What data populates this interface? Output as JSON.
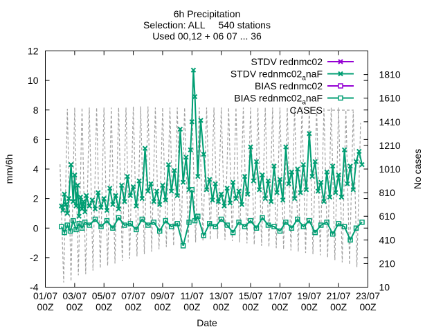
{
  "chart_data": {
    "type": "line",
    "title": [
      "6h Precipitation",
      "Selection: ALL     540 stations",
      "Used 00,12 + 06 07 ... 36"
    ],
    "xlabel": "Date",
    "ylabel": "mm/6h",
    "y2label": "No cases",
    "ylim": [
      -4,
      12
    ],
    "y2lim": [
      10,
      2010
    ],
    "yticks": [
      -4,
      -2,
      0,
      2,
      4,
      6,
      8,
      10,
      12
    ],
    "y2ticks": [
      10,
      210,
      410,
      610,
      810,
      1010,
      1210,
      1410,
      1610,
      1810
    ],
    "xlim_days": [
      0,
      22
    ],
    "xticks": [
      {
        "day": 0,
        "label1": "01/07",
        "label2": "00Z"
      },
      {
        "day": 2,
        "label1": "03/07",
        "label2": "00Z"
      },
      {
        "day": 4,
        "label1": "05/07",
        "label2": "00Z"
      },
      {
        "day": 6,
        "label1": "07/07",
        "label2": "00Z"
      },
      {
        "day": 8,
        "label1": "09/07",
        "label2": "00Z"
      },
      {
        "day": 10,
        "label1": "11/07",
        "label2": "00Z"
      },
      {
        "day": 12,
        "label1": "13/07",
        "label2": "00Z"
      },
      {
        "day": 14,
        "label1": "15/07",
        "label2": "00Z"
      },
      {
        "day": 16,
        "label1": "17/07",
        "label2": "00Z"
      },
      {
        "day": 18,
        "label1": "19/07",
        "label2": "00Z"
      },
      {
        "day": 20,
        "label1": "21/07",
        "label2": "00Z"
      },
      {
        "day": 22,
        "label1": "23/07",
        "label2": "00Z"
      }
    ],
    "legend_position": "top-right",
    "legend": [
      {
        "label": "STDV rednmc02",
        "color": "#9400d3",
        "style": "line-x"
      },
      {
        "label_pre": "STDV rednmc02",
        "label_sub": "a",
        "label_post": "naF",
        "color": "#009e73",
        "style": "line-x"
      },
      {
        "label": "BIAS rednmc02",
        "color": "#9400d3",
        "style": "line-square"
      },
      {
        "label_pre": "BIAS rednmc02",
        "label_sub": "a",
        "label_post": "naF",
        "color": "#009e73",
        "style": "line-square"
      },
      {
        "label": "CASES",
        "color": "#a0a0a0",
        "style": "dashed"
      }
    ],
    "series": [
      {
        "name": "STDV rednmc02anaF",
        "color": "#009e73",
        "marker": "x",
        "x": [
          1.1,
          1.2,
          1.3,
          1.4,
          1.5,
          1.6,
          1.75,
          1.9,
          2.0,
          2.1,
          2.2,
          2.3,
          2.4,
          2.5,
          2.6,
          2.7,
          2.8,
          3.0,
          3.2,
          3.4,
          3.6,
          3.8,
          4.0,
          4.2,
          4.4,
          4.6,
          4.8,
          5.0,
          5.2,
          5.4,
          5.6,
          5.8,
          6.0,
          6.2,
          6.4,
          6.6,
          6.8,
          7.0,
          7.2,
          7.4,
          7.6,
          7.8,
          8.0,
          8.2,
          8.4,
          8.6,
          8.8,
          9.0,
          9.2,
          9.4,
          9.6,
          9.8,
          9.9,
          10.0,
          10.1,
          10.2,
          10.4,
          10.6,
          10.8,
          11.0,
          11.2,
          11.4,
          11.6,
          11.8,
          12.0,
          12.2,
          12.4,
          12.6,
          12.8,
          13.0,
          13.2,
          13.4,
          13.6,
          13.8,
          14.0,
          14.2,
          14.4,
          14.6,
          14.8,
          15.0,
          15.2,
          15.4,
          15.6,
          15.8,
          16.0,
          16.2,
          16.4,
          16.6,
          16.8,
          17.0,
          17.2,
          17.4,
          17.6,
          17.8,
          18.0,
          18.2,
          18.4,
          18.6,
          18.8,
          19.0,
          19.2,
          19.4,
          19.6,
          19.8,
          20.0,
          20.2,
          20.4,
          20.6,
          20.8,
          21.0,
          21.2,
          21.4,
          21.6
        ],
        "y": [
          1.5,
          1.2,
          2.3,
          1.6,
          1.0,
          2.0,
          4.3,
          1.8,
          3.6,
          1.5,
          2.9,
          0.8,
          2.1,
          1.3,
          1.8,
          1.1,
          2.2,
          1.5,
          1.9,
          1.3,
          2.4,
          1.4,
          2.0,
          1.2,
          2.7,
          1.6,
          2.2,
          1.3,
          2.9,
          1.8,
          3.5,
          2.2,
          2.8,
          1.5,
          3.2,
          2.0,
          5.4,
          2.5,
          3.0,
          1.8,
          2.5,
          1.6,
          2.9,
          1.9,
          4.3,
          2.5,
          3.9,
          2.2,
          6.7,
          3.1,
          4.8,
          2.6,
          5.3,
          7.2,
          10.7,
          8.9,
          3.5,
          7.3,
          5.0,
          2.6,
          3.3,
          1.9,
          3.0,
          1.8,
          2.3,
          1.5,
          2.7,
          1.7,
          3.1,
          2.0,
          2.5,
          1.6,
          3.5,
          2.3,
          5.5,
          3.2,
          4.5,
          2.6,
          3.6,
          2.0,
          3.2,
          1.8,
          4.2,
          2.4,
          3.3,
          1.9,
          5.5,
          3.0,
          3.8,
          2.0,
          4.0,
          2.4,
          4.3,
          2.6,
          6.4,
          3.5,
          4.5,
          2.5,
          3.1,
          1.8,
          3.8,
          2.1,
          4.2,
          2.4,
          3.6,
          2.1,
          5.3,
          3.0,
          4.2,
          2.6,
          4.5,
          5.2,
          4.3
        ]
      },
      {
        "name": "BIAS rednmc02anaF",
        "color": "#009e73",
        "marker": "square",
        "x": [
          1.1,
          1.3,
          1.5,
          1.7,
          1.9,
          2.1,
          2.3,
          2.5,
          2.7,
          3.0,
          3.4,
          3.8,
          4.2,
          4.6,
          5.0,
          5.4,
          5.8,
          6.2,
          6.6,
          7.0,
          7.4,
          7.8,
          8.2,
          8.6,
          9.0,
          9.4,
          9.8,
          10.0,
          10.2,
          10.4,
          10.8,
          11.2,
          11.6,
          12.0,
          12.4,
          12.8,
          13.2,
          13.6,
          14.0,
          14.4,
          14.8,
          15.2,
          15.6,
          16.0,
          16.4,
          16.8,
          17.2,
          17.6,
          18.0,
          18.4,
          18.8,
          19.2,
          19.6,
          20.0,
          20.4,
          20.8,
          21.2,
          21.6
        ],
        "y": [
          0.1,
          -0.3,
          0.2,
          -0.2,
          0.5,
          -0.1,
          0.3,
          0.0,
          0.4,
          0.2,
          0.6,
          0.1,
          0.5,
          0.0,
          0.7,
          0.2,
          0.3,
          -0.1,
          0.6,
          0.2,
          0.4,
          -0.2,
          0.5,
          0.1,
          0.3,
          -1.2,
          0.4,
          2.6,
          0.5,
          0.8,
          -0.5,
          0.3,
          0.1,
          0.6,
          0.2,
          -0.3,
          0.4,
          0.1,
          0.5,
          0.0,
          0.7,
          0.2,
          0.1,
          -0.2,
          0.4,
          0.0,
          0.6,
          0.1,
          0.5,
          -0.3,
          0.2,
          0.4,
          -0.4,
          0.3,
          0.1,
          -0.8,
          0.0,
          0.4
        ]
      },
      {
        "name": "CASES",
        "color": "#a0a0a0",
        "axis": "y2",
        "x": [
          1.0,
          1.25,
          1.5,
          1.75,
          2.0,
          2.25,
          2.5,
          2.75,
          3.0,
          3.25,
          3.5,
          3.75,
          4.0,
          4.25,
          4.5,
          4.75,
          5.0,
          5.25,
          5.5,
          5.75,
          6.0,
          6.25,
          6.5,
          6.75,
          7.0,
          7.25,
          7.5,
          7.75,
          8.0,
          8.25,
          8.5,
          8.75,
          9.0,
          9.25,
          9.5,
          9.75,
          10.0,
          10.25,
          10.5,
          10.75,
          11.0,
          11.25,
          11.5,
          11.75,
          12.0,
          12.25,
          12.5,
          12.75,
          13.0,
          13.25,
          13.5,
          13.75,
          14.0,
          14.25,
          14.5,
          14.75,
          15.0,
          15.25,
          15.5,
          15.75,
          16.0,
          16.25,
          16.5,
          16.75,
          17.0,
          17.25,
          17.5,
          17.75,
          18.0,
          18.25,
          18.5,
          18.75,
          19.0,
          19.25,
          19.5,
          19.75,
          20.0,
          20.25,
          20.5,
          20.75,
          21.0,
          21.25,
          21.5
        ],
        "y": [
          1050,
          50,
          1520,
          60,
          1530,
          110,
          1530,
          120,
          1530,
          150,
          1530,
          170,
          1530,
          190,
          1530,
          210,
          1530,
          230,
          1530,
          250,
          1540,
          270,
          1540,
          290,
          1540,
          310,
          1530,
          330,
          1530,
          350,
          1530,
          360,
          1530,
          370,
          1530,
          380,
          1530,
          390,
          1530,
          400,
          1530,
          410,
          1530,
          420,
          1530,
          410,
          1530,
          400,
          1530,
          390,
          1530,
          380,
          1530,
          370,
          1530,
          360,
          1530,
          350,
          1530,
          340,
          1530,
          330,
          1530,
          320,
          1530,
          310,
          1530,
          300,
          1530,
          290,
          1530,
          280,
          1530,
          260,
          1530,
          240,
          1530,
          220,
          1510,
          200,
          1500,
          180,
          1400
        ]
      }
    ]
  }
}
